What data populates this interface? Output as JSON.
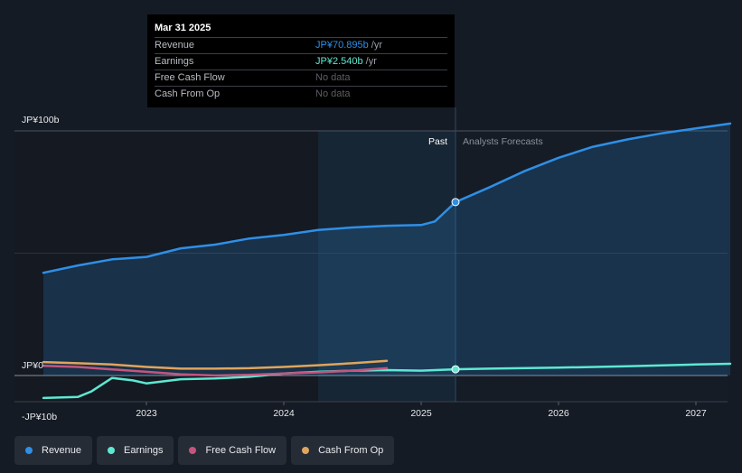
{
  "tooltip": {
    "date": "Mar 31 2025",
    "rows": [
      {
        "label": "Revenue",
        "value": "JP¥70.895b",
        "unit": " /yr"
      },
      {
        "label": "Earnings",
        "value": "JP¥2.540b",
        "unit": " /yr"
      },
      {
        "label": "Free Cash Flow",
        "value": "No data"
      },
      {
        "label": "Cash From Op",
        "value": "No data"
      }
    ]
  },
  "legend": [
    {
      "label": "Revenue",
      "color": "#2f8fe6"
    },
    {
      "label": "Earnings",
      "color": "#5ee8d2"
    },
    {
      "label": "Free Cash Flow",
      "color": "#c2567e"
    },
    {
      "label": "Cash From Op",
      "color": "#e0a55c"
    }
  ],
  "chart_data": {
    "type": "line",
    "title": "",
    "y_unit": "JP¥ billions",
    "ylim": [
      -10,
      100
    ],
    "y_ticks": [
      {
        "value": 100,
        "label": "JP¥100b"
      },
      {
        "value": 0,
        "label": "JP¥0"
      },
      {
        "value": -10,
        "label": "-JP¥10b"
      }
    ],
    "xlim": [
      2022.2,
      2027.25
    ],
    "x_ticks": [
      {
        "value": 2023,
        "label": "2023"
      },
      {
        "value": 2024,
        "label": "2024"
      },
      {
        "value": 2025,
        "label": "2025"
      },
      {
        "value": 2026,
        "label": "2026"
      },
      {
        "value": 2027,
        "label": "2027"
      }
    ],
    "past_start": 2024.25,
    "divider": 2025.25,
    "past_label": "Past",
    "forecast_label": "Analysts Forecasts",
    "highlight_x": 2025.25,
    "series": [
      {
        "name": "Revenue",
        "color": "#2f8fe6",
        "fill": true,
        "points": [
          [
            2022.25,
            42
          ],
          [
            2022.5,
            45
          ],
          [
            2022.75,
            47.5
          ],
          [
            2023.0,
            48.5
          ],
          [
            2023.25,
            52
          ],
          [
            2023.5,
            53.5
          ],
          [
            2023.75,
            56
          ],
          [
            2024.0,
            57.5
          ],
          [
            2024.25,
            59.5
          ],
          [
            2024.5,
            60.5
          ],
          [
            2024.75,
            61.2
          ],
          [
            2025.0,
            61.5
          ],
          [
            2025.1,
            63
          ],
          [
            2025.25,
            70.9
          ],
          [
            2025.5,
            77
          ],
          [
            2025.75,
            83.5
          ],
          [
            2026.0,
            89
          ],
          [
            2026.25,
            93.5
          ],
          [
            2026.5,
            96.5
          ],
          [
            2026.75,
            99
          ],
          [
            2027.0,
            101
          ],
          [
            2027.25,
            103
          ]
        ]
      },
      {
        "name": "Earnings",
        "color": "#5ee8d2",
        "fill": false,
        "points": [
          [
            2022.25,
            -9.2
          ],
          [
            2022.5,
            -8.8
          ],
          [
            2022.6,
            -6.5
          ],
          [
            2022.75,
            -1
          ],
          [
            2022.9,
            -2
          ],
          [
            2023.0,
            -3.2
          ],
          [
            2023.25,
            -1.5
          ],
          [
            2023.5,
            -1.2
          ],
          [
            2023.75,
            -0.5
          ],
          [
            2024.0,
            0.8
          ],
          [
            2024.25,
            1.5
          ],
          [
            2024.5,
            2
          ],
          [
            2024.75,
            2.2
          ],
          [
            2025.0,
            2.0
          ],
          [
            2025.25,
            2.54
          ],
          [
            2025.5,
            2.8
          ],
          [
            2026.0,
            3.2
          ],
          [
            2026.5,
            3.8
          ],
          [
            2027.0,
            4.5
          ],
          [
            2027.25,
            4.8
          ]
        ]
      },
      {
        "name": "Free Cash Flow",
        "color": "#c2567e",
        "fill": false,
        "points": [
          [
            2022.25,
            4
          ],
          [
            2022.5,
            3.5
          ],
          [
            2022.75,
            2.5
          ],
          [
            2023.0,
            1.5
          ],
          [
            2023.25,
            0.5
          ],
          [
            2023.5,
            0
          ],
          [
            2023.75,
            0.3
          ],
          [
            2024.0,
            0.8
          ],
          [
            2024.25,
            1.3
          ],
          [
            2024.5,
            2
          ],
          [
            2024.75,
            3
          ]
        ]
      },
      {
        "name": "Cash From Op",
        "color": "#e0a55c",
        "fill": false,
        "points": [
          [
            2022.25,
            5.5
          ],
          [
            2022.5,
            5
          ],
          [
            2022.75,
            4.5
          ],
          [
            2023.0,
            3.5
          ],
          [
            2023.25,
            2.8
          ],
          [
            2023.5,
            2.8
          ],
          [
            2023.75,
            3
          ],
          [
            2024.0,
            3.5
          ],
          [
            2024.25,
            4.2
          ],
          [
            2024.5,
            5
          ],
          [
            2024.75,
            6
          ]
        ]
      }
    ]
  }
}
